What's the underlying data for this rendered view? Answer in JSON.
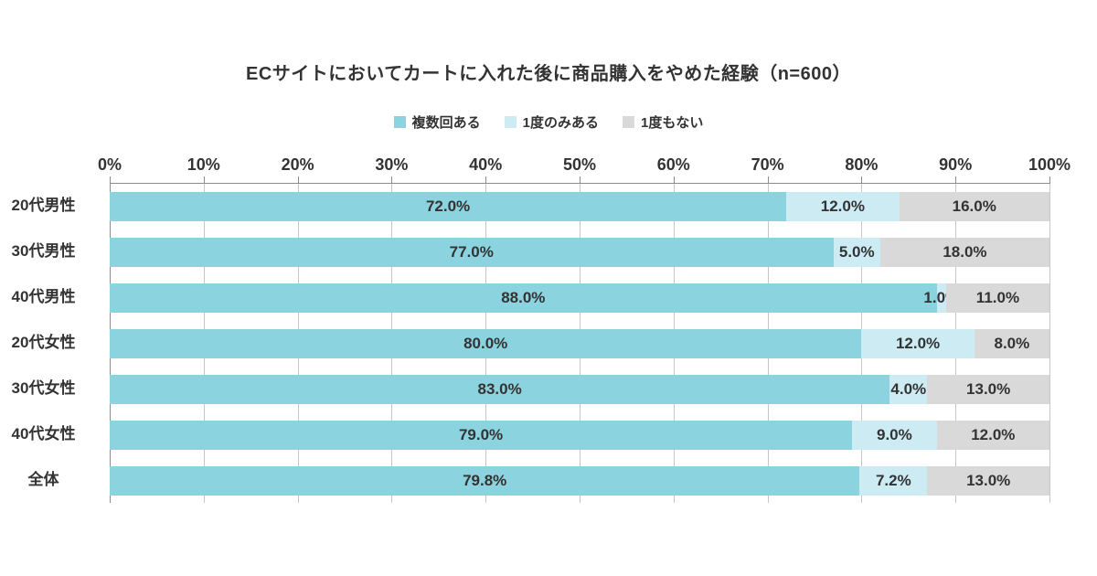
{
  "chart_data": {
    "type": "bar",
    "orientation": "horizontal-stacked",
    "title": "ECサイトにおいてカートに入れた後に商品購入をやめた経験（n=600）",
    "categories": [
      "20代男性",
      "30代男性",
      "40代男性",
      "20代女性",
      "30代女性",
      "40代女性",
      "全体"
    ],
    "series": [
      {
        "name": "複数回ある",
        "color": "#8bd3df",
        "values": [
          72.0,
          77.0,
          88.0,
          80.0,
          83.0,
          79.0,
          79.8
        ]
      },
      {
        "name": "1度のみある",
        "color": "#cdebf3",
        "values": [
          12.0,
          5.0,
          1.0,
          12.0,
          4.0,
          9.0,
          7.2
        ]
      },
      {
        "name": "1度もない",
        "color": "#d9d9d9",
        "values": [
          16.0,
          18.0,
          11.0,
          8.0,
          13.0,
          12.0,
          13.0
        ]
      }
    ],
    "xlim": [
      0,
      100
    ],
    "x_ticks": [
      "0%",
      "10%",
      "20%",
      "30%",
      "40%",
      "50%",
      "60%",
      "70%",
      "80%",
      "90%",
      "100%"
    ],
    "value_suffix": "%",
    "value_decimals": 1,
    "legend_position": "top",
    "grid": true,
    "colors": {
      "text": "#333333",
      "gridline": "#c6c6c6",
      "axis": "#8c8c8c",
      "background": "#ffffff"
    }
  }
}
